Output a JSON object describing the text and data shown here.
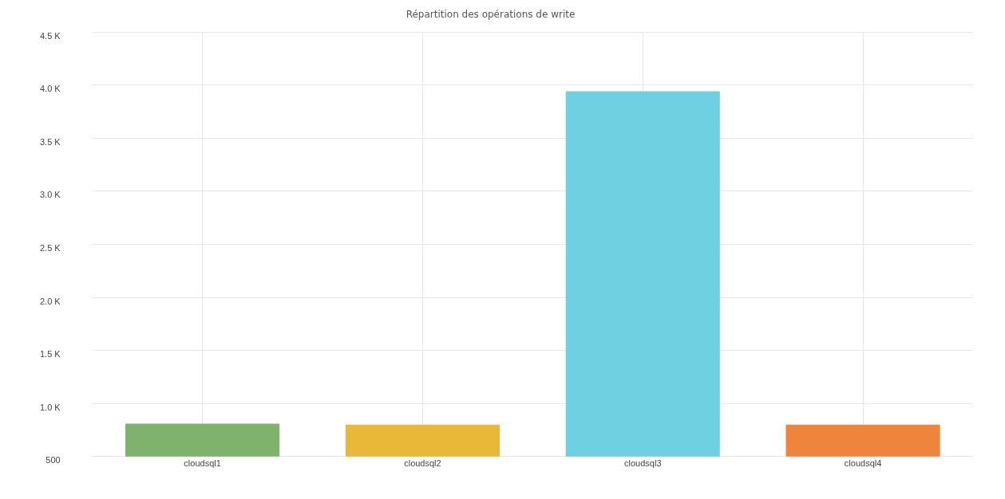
{
  "chart_data": {
    "type": "bar",
    "title": "Répartition des opérations de write",
    "categories": [
      "cloudsql1",
      "cloudsql2",
      "cloudsql3",
      "cloudsql4"
    ],
    "values": [
      810,
      800,
      3940,
      800
    ],
    "colors": [
      "#7eb26d",
      "#eab839",
      "#6ed0e0",
      "#ef843c"
    ],
    "ylim": [
      500,
      4500
    ],
    "yticks": [
      500,
      {
        "value": 1000,
        "label": "1.0 K"
      },
      {
        "value": 1500,
        "label": "1.5 K"
      },
      {
        "value": 2000,
        "label": "2.0 K"
      },
      {
        "value": 2500,
        "label": "2.5 K"
      },
      {
        "value": 3000,
        "label": "3.0 K"
      },
      {
        "value": 3500,
        "label": "3.5 K"
      },
      {
        "value": 4000,
        "label": "4.0 K"
      },
      {
        "value": 4500,
        "label": "4.5 K"
      }
    ],
    "grid": true
  }
}
